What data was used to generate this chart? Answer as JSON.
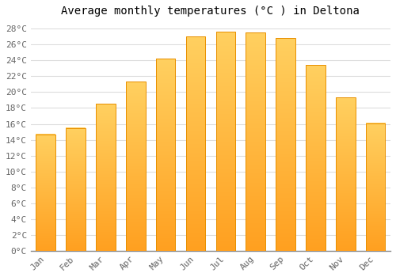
{
  "title": "Average monthly temperatures (°C ) in Deltona",
  "months": [
    "Jan",
    "Feb",
    "Mar",
    "Apr",
    "May",
    "Jun",
    "Jul",
    "Aug",
    "Sep",
    "Oct",
    "Nov",
    "Dec"
  ],
  "values": [
    14.7,
    15.5,
    18.5,
    21.3,
    24.2,
    27.0,
    27.6,
    27.5,
    26.8,
    23.4,
    19.3,
    16.1
  ],
  "bar_color_top": "#FFD060",
  "bar_color_bottom": "#FFA020",
  "bar_edge_color": "#E89000",
  "background_color": "#FFFFFF",
  "plot_bg_color": "#FFFFFF",
  "grid_color": "#DDDDDD",
  "ylim": [
    0,
    29
  ],
  "ytick_max": 28,
  "ytick_step": 2,
  "title_fontsize": 10,
  "tick_fontsize": 8,
  "title_font": "monospace",
  "tick_font": "monospace",
  "bar_width": 0.65
}
